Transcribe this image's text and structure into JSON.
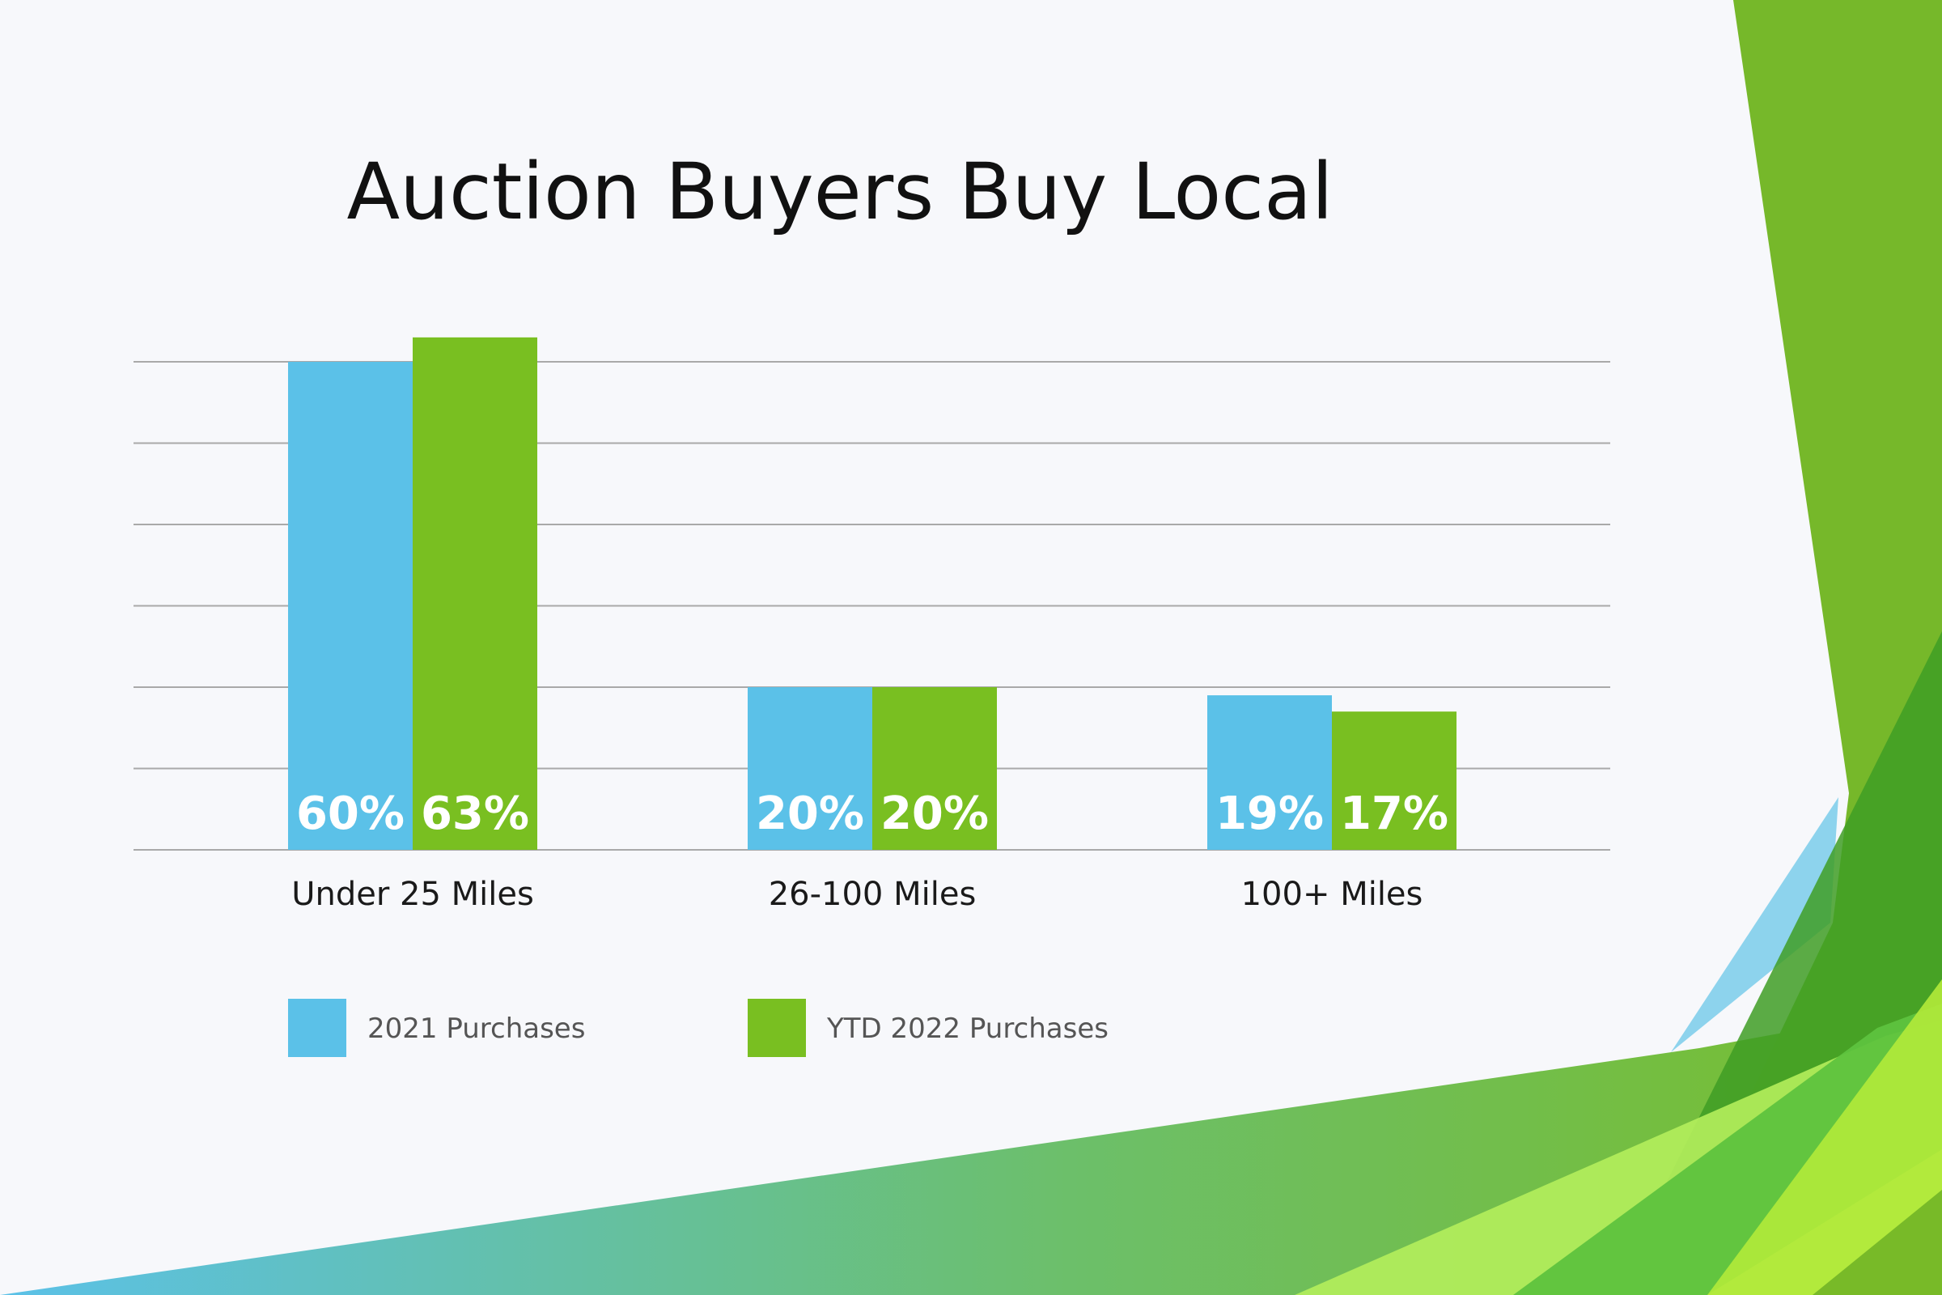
{
  "colors": {
    "background": "#f7f8fb",
    "series_2021": "#5bc1e8",
    "series_2022": "#79bf21",
    "grid": "#a9a9a9",
    "title_text": "#111111",
    "category_text": "#1a1a1a",
    "legend_text": "#555555",
    "data_label_text": "#ffffff"
  },
  "chart_data": {
    "type": "bar",
    "title": "Auction Buyers Buy Local",
    "categories": [
      "Under 25 Miles",
      "26-100 Miles",
      "100+ Miles"
    ],
    "series": [
      {
        "name": "2021 Purchases",
        "values": [
          60,
          20,
          19
        ],
        "labels": [
          "60%",
          "20%",
          "19%"
        ]
      },
      {
        "name": "YTD 2022 Purchases",
        "values": [
          63,
          20,
          17
        ],
        "labels": [
          "63%",
          "20%",
          "17%"
        ]
      }
    ],
    "xlabel": "",
    "ylabel": "",
    "ylim": [
      0,
      60
    ],
    "y_unit": "%",
    "grid": true,
    "legend_position": "bottom-left"
  }
}
